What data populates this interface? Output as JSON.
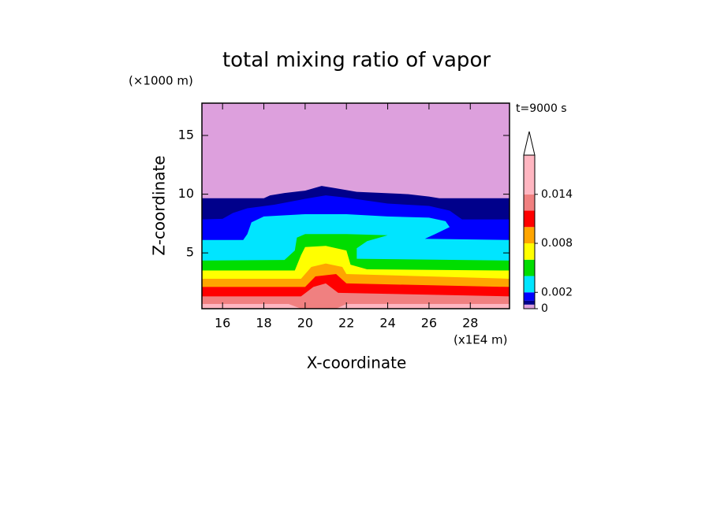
{
  "chart_data": {
    "type": "contourf",
    "title": "total mixing ratio of vapor",
    "y_unit": "(×1000 m)",
    "x_unit": "(x1E4 m)",
    "time_label": "t=9000 s",
    "xlabel": "X-coordinate",
    "ylabel": "Z-coordinate",
    "xlim": [
      15,
      29.9
    ],
    "ylim": [
      0.25,
      17.75
    ],
    "xticks": [
      16,
      18,
      20,
      22,
      24,
      26,
      28
    ],
    "yticks": [
      5,
      10,
      15
    ],
    "cbar_lim": [
      0,
      0.0188
    ],
    "cbar_ticks": [
      0,
      0.002,
      0.008,
      0.014
    ],
    "contours": [
      {
        "level": 0,
        "color": "#dda0dd"
      },
      {
        "level": 0.0005,
        "color": "#00008b",
        "x": [
          15,
          18,
          18.3,
          19,
          20,
          20.8,
          21.5,
          22.5,
          25,
          26,
          26.5,
          29.9
        ],
        "z": [
          9.65,
          9.65,
          9.9,
          10.1,
          10.3,
          10.7,
          10.5,
          10.2,
          10.0,
          9.8,
          9.65,
          9.65
        ]
      },
      {
        "level": 0.001,
        "color": "#0000ff",
        "x": [
          15,
          16,
          16.5,
          17.2,
          18.5,
          20,
          21,
          22,
          24,
          26,
          27,
          27.6,
          29.9
        ],
        "z": [
          7.85,
          7.9,
          8.4,
          8.8,
          9.1,
          9.6,
          9.9,
          9.7,
          9.2,
          9.0,
          8.6,
          7.85,
          7.85
        ]
      },
      {
        "level": 0.002,
        "color": "#00e5ff",
        "x": [
          15,
          17,
          17.2,
          17.4,
          18,
          20,
          22,
          24,
          26,
          26.8,
          27,
          26.3,
          25.8,
          29.9
        ],
        "z": [
          6.1,
          6.1,
          6.6,
          7.6,
          8.1,
          8.3,
          8.3,
          8.1,
          8.0,
          7.7,
          7.2,
          6.6,
          6.2,
          6.1
        ]
      },
      {
        "level": 0.004,
        "color": "#00dd00",
        "x": [
          15,
          19,
          19.5,
          19.6,
          20,
          22,
          24,
          23,
          22.5,
          22.5,
          29.9
        ],
        "z": [
          4.35,
          4.4,
          5.2,
          6.3,
          6.6,
          6.6,
          6.5,
          6.0,
          5.4,
          4.5,
          4.35
        ]
      },
      {
        "level": 0.006,
        "color": "#ffff00",
        "x": [
          15,
          19.5,
          19.8,
          20,
          21,
          22,
          22.2,
          23,
          29.9
        ],
        "z": [
          3.5,
          3.5,
          4.8,
          5.5,
          5.6,
          5.2,
          4.0,
          3.6,
          3.5
        ]
      },
      {
        "level": 0.008,
        "color": "#ffa500",
        "x": [
          15,
          19.8,
          20.3,
          21,
          21.8,
          22,
          29.9
        ],
        "z": [
          2.8,
          2.8,
          3.8,
          4.1,
          3.8,
          3.2,
          2.8
        ]
      },
      {
        "level": 0.01,
        "color": "#ff0000",
        "x": [
          15,
          20,
          20.5,
          21.5,
          22,
          29.9
        ],
        "z": [
          2.1,
          2.1,
          3.0,
          3.2,
          2.4,
          2.1
        ]
      },
      {
        "level": 0.012,
        "color": "#f08080",
        "x": [
          15,
          19.8,
          20.4,
          21,
          21.6,
          29.9
        ],
        "z": [
          1.3,
          1.3,
          2.1,
          2.4,
          1.6,
          1.3
        ]
      },
      {
        "level": 0.014,
        "color": "#ffb6c1",
        "x": [
          15,
          19.2,
          19.8,
          21.5,
          22,
          29.9
        ],
        "z": [
          0.65,
          0.65,
          0.25,
          0.25,
          0.65,
          0.65
        ]
      }
    ]
  }
}
